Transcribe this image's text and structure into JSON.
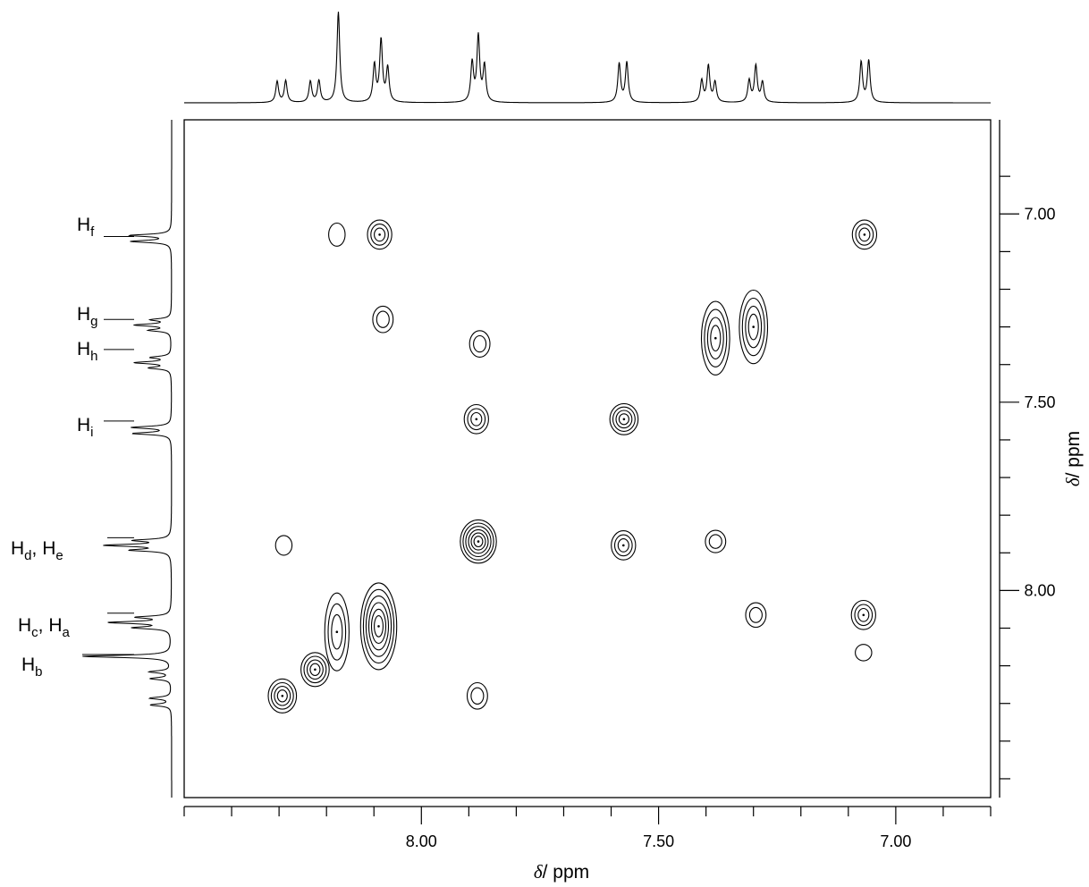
{
  "chart_data": {
    "type": "contour",
    "x_axis": {
      "label_symbol": "δ",
      "label_unit": "/ ppm",
      "range": [
        8.5,
        6.8
      ],
      "direction": "decreasing",
      "ticks": [
        8.0,
        7.5,
        7.0
      ],
      "tick_labels": [
        "8.00",
        "7.50",
        "7.00"
      ],
      "minor_tick_step": 0.1
    },
    "y_axis": {
      "label_symbol": "δ",
      "label_unit": "/ ppm",
      "range": [
        6.75,
        8.55
      ],
      "direction": "increasing_downward",
      "position": "right",
      "ticks": [
        7.0,
        7.5,
        8.0
      ],
      "tick_labels": [
        "7.00",
        "7.50",
        "8.00"
      ],
      "minor_tick_step": 0.1
    },
    "peak_labels": [
      {
        "main": "H",
        "sub": "f",
        "text": "Hf",
        "ppm": 7.06
      },
      {
        "main": "H",
        "sub": "g",
        "text": "Hg",
        "ppm": 7.28
      },
      {
        "main": "H",
        "sub": "h",
        "text": "Hh",
        "ppm": 7.36
      },
      {
        "main": "H",
        "sub": "i",
        "text": "Hi",
        "ppm": 7.55
      },
      {
        "main": "H",
        "sub": "d",
        "main2": "H",
        "sub2": "e",
        "text": "Hd, He",
        "ppm": 7.86
      },
      {
        "main": "H",
        "sub": "c",
        "main2": "H",
        "sub2": "a",
        "text": "Hc, Ha",
        "ppm": 8.06
      },
      {
        "main": "H",
        "sub": "b",
        "text": "Hb",
        "ppm": 8.17
      }
    ],
    "projection_1d": {
      "multiplets": [
        {
          "shift": 8.295,
          "pattern": "d",
          "j": 0.018,
          "height": 0.24
        },
        {
          "shift": 8.225,
          "pattern": "d",
          "j": 0.018,
          "height": 0.24
        },
        {
          "shift": 8.175,
          "pattern": "s",
          "height": 1.0
        },
        {
          "shift": 8.085,
          "pattern": "t",
          "j": 0.014,
          "height": 0.68
        },
        {
          "shift": 7.88,
          "pattern": "t",
          "j": 0.013,
          "height": 0.72
        },
        {
          "shift": 7.575,
          "pattern": "d",
          "j": 0.016,
          "height": 0.44
        },
        {
          "shift": 7.395,
          "pattern": "t",
          "j": 0.014,
          "height": 0.4
        },
        {
          "shift": 7.295,
          "pattern": "t",
          "j": 0.014,
          "height": 0.4
        },
        {
          "shift": 7.065,
          "pattern": "d",
          "j": 0.016,
          "height": 0.46
        }
      ]
    },
    "cross_peaks": [
      {
        "x": 8.178,
        "y": 7.055,
        "size": 1,
        "elong": 1.4
      },
      {
        "x": 8.088,
        "y": 7.055,
        "size": 3,
        "elong": 1.2
      },
      {
        "x": 7.066,
        "y": 7.055,
        "size": 3,
        "elong": 1.2
      },
      {
        "x": 8.081,
        "y": 7.28,
        "size": 2,
        "elong": 1.3
      },
      {
        "x": 7.877,
        "y": 7.345,
        "size": 2,
        "elong": 1.3
      },
      {
        "x": 7.38,
        "y": 7.33,
        "size": 4,
        "elong": 2.6
      },
      {
        "x": 7.3,
        "y": 7.3,
        "size": 4,
        "elong": 2.6
      },
      {
        "x": 7.884,
        "y": 7.545,
        "size": 3,
        "elong": 1.2
      },
      {
        "x": 7.573,
        "y": 7.545,
        "size": 4,
        "elong": 1.1
      },
      {
        "x": 8.29,
        "y": 7.88,
        "size": 1,
        "elong": 1.2
      },
      {
        "x": 7.88,
        "y": 7.87,
        "size": 6,
        "elong": 1.2
      },
      {
        "x": 7.574,
        "y": 7.88,
        "size": 3,
        "elong": 1.2
      },
      {
        "x": 7.38,
        "y": 7.87,
        "size": 2,
        "elong": 1.1
      },
      {
        "x": 8.178,
        "y": 8.11,
        "size": 3,
        "elong": 3.2
      },
      {
        "x": 8.09,
        "y": 8.095,
        "size": 6,
        "elong": 2.4
      },
      {
        "x": 7.295,
        "y": 8.065,
        "size": 2,
        "elong": 1.2
      },
      {
        "x": 7.068,
        "y": 8.065,
        "size": 3,
        "elong": 1.2
      },
      {
        "x": 8.224,
        "y": 8.21,
        "size": 4,
        "elong": 1.2
      },
      {
        "x": 8.293,
        "y": 8.28,
        "size": 4,
        "elong": 1.2
      },
      {
        "x": 7.882,
        "y": 8.28,
        "size": 2,
        "elong": 1.3
      },
      {
        "x": 7.068,
        "y": 8.165,
        "size": 1,
        "elong": 1.0
      }
    ]
  }
}
